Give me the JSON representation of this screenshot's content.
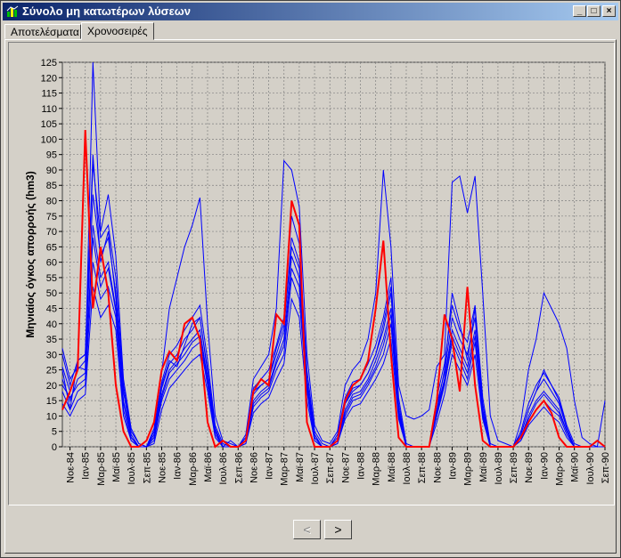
{
  "window": {
    "title": "Σύνολο μη κατωτέρων λύσεων",
    "minimize_label": "_",
    "maximize_label": "□",
    "close_label": "×"
  },
  "tabs": [
    {
      "label": "Αποτελέσματα",
      "active": false
    },
    {
      "label": "Χρονοσειρές",
      "active": true
    }
  ],
  "nav": {
    "prev_label": "<",
    "next_label": ">"
  },
  "colors": {
    "ensemble": "#0000ff",
    "highlight": "#ff0000",
    "plot_bg": "#d4d0c8"
  },
  "chart_data": {
    "type": "line",
    "ylabel": "Μηνιαίος όγκος απορροής (hm3)",
    "xlabel": "",
    "ylim": [
      0,
      125
    ],
    "yticks": [
      0,
      5,
      10,
      15,
      20,
      25,
      30,
      35,
      40,
      45,
      50,
      55,
      60,
      65,
      70,
      75,
      80,
      85,
      90,
      95,
      100,
      105,
      110,
      115,
      120,
      125
    ],
    "grid": true,
    "categories": [
      "Οκτ-84",
      "Νοε-84",
      "Δεκ-84",
      "Ιαν-85",
      "Φεβ-85",
      "Μαρ-85",
      "Απρ-85",
      "Μαϊ-85",
      "Ιουν-85",
      "Ιουλ-85",
      "Αυγ-85",
      "Σεπ-85",
      "Οκτ-85",
      "Νοε-85",
      "Δεκ-85",
      "Ιαν-86",
      "Φεβ-86",
      "Μαρ-86",
      "Απρ-86",
      "Μαϊ-86",
      "Ιουν-86",
      "Ιουλ-86",
      "Αυγ-86",
      "Σεπ-86",
      "Οκτ-86",
      "Νοε-86",
      "Δεκ-86",
      "Ιαν-87",
      "Φεβ-87",
      "Μαρ-87",
      "Απρ-87",
      "Μαϊ-87",
      "Ιουν-87",
      "Ιουλ-87",
      "Αυγ-87",
      "Σεπ-87",
      "Οκτ-87",
      "Νοε-87",
      "Δεκ-87",
      "Ιαν-88",
      "Φεβ-88",
      "Μαρ-88",
      "Απρ-88",
      "Μαϊ-88",
      "Ιουν-88",
      "Ιουλ-88",
      "Αυγ-88",
      "Σεπ-88",
      "Οκτ-88",
      "Νοε-88",
      "Δεκ-88",
      "Ιαν-89",
      "Φεβ-89",
      "Μαρ-89",
      "Απρ-89",
      "Μαϊ-89",
      "Ιουν-89",
      "Ιουλ-89",
      "Αυγ-89",
      "Σεπ-89",
      "Οκτ-89",
      "Νοε-89",
      "Δεκ-89",
      "Ιαν-90",
      "Φεβ-90",
      "Μαρ-90",
      "Απρ-90",
      "Μαϊ-90",
      "Ιουν-90",
      "Ιουλ-90",
      "Αυγ-90",
      "Σεπ-90"
    ],
    "tick_labels": [
      "Νοε-84",
      "Ιαν-85",
      "Μαρ-85",
      "Μαϊ-85",
      "Ιουλ-85",
      "Σεπ-85",
      "Νοε-85",
      "Ιαν-86",
      "Μαρ-86",
      "Μαϊ-86",
      "Ιουλ-86",
      "Σεπ-86",
      "Νοε-86",
      "Ιαν-87",
      "Μαρ-87",
      "Μαϊ-87",
      "Ιουλ-87",
      "Σεπ-87",
      "Νοε-87",
      "Ιαν-88",
      "Μαρ-88",
      "Μαϊ-88",
      "Ιουλ-88",
      "Σεπ-88",
      "Νοε-88",
      "Ιαν-89",
      "Μαρ-89",
      "Μαϊ-89",
      "Ιουλ-89",
      "Σεπ-89",
      "Νοε-89",
      "Ιαν-90",
      "Μαρ-90",
      "Μαϊ-90",
      "Ιουλ-90",
      "Σεπ-90"
    ],
    "series": [
      {
        "values": [
          22,
          15,
          22,
          24,
          72,
          55,
          60,
          45,
          15,
          3,
          0,
          0,
          3,
          17,
          25,
          28,
          32,
          35,
          38,
          22,
          5,
          0,
          0,
          0,
          2,
          15,
          18,
          20,
          28,
          35,
          62,
          55,
          20,
          3,
          0,
          0,
          2,
          12,
          17,
          18,
          22,
          28,
          35,
          45,
          12,
          0,
          0,
          0,
          0,
          12,
          22,
          38,
          32,
          26,
          38,
          12,
          0,
          0,
          0,
          0,
          3,
          10,
          15,
          18,
          15,
          12,
          5,
          0,
          0,
          0,
          0,
          0
        ]
      },
      {
        "values": [
          18,
          12,
          18,
          20,
          60,
          48,
          52,
          42,
          12,
          2,
          0,
          0,
          2,
          15,
          22,
          25,
          28,
          32,
          34,
          20,
          4,
          0,
          0,
          0,
          1,
          13,
          16,
          18,
          25,
          30,
          55,
          48,
          18,
          2,
          0,
          0,
          1,
          10,
          15,
          16,
          20,
          25,
          30,
          40,
          10,
          0,
          0,
          0,
          0,
          10,
          20,
          34,
          28,
          22,
          34,
          10,
          0,
          0,
          0,
          0,
          2,
          8,
          12,
          15,
          12,
          10,
          4,
          0,
          0,
          0,
          0,
          0
        ]
      },
      {
        "values": [
          26,
          18,
          25,
          28,
          82,
          62,
          68,
          50,
          18,
          4,
          0,
          0,
          4,
          19,
          27,
          30,
          35,
          38,
          42,
          25,
          6,
          0,
          0,
          0,
          3,
          17,
          20,
          22,
          30,
          38,
          68,
          60,
          22,
          4,
          0,
          0,
          3,
          14,
          19,
          20,
          24,
          30,
          38,
          50,
          14,
          0,
          0,
          0,
          0,
          14,
          24,
          42,
          35,
          30,
          42,
          14,
          0,
          0,
          0,
          0,
          4,
          12,
          18,
          22,
          18,
          14,
          6,
          0,
          0,
          0,
          0,
          0
        ]
      },
      {
        "values": [
          30,
          20,
          28,
          30,
          92,
          68,
          72,
          55,
          20,
          5,
          1,
          0,
          5,
          21,
          30,
          33,
          38,
          42,
          46,
          28,
          7,
          1,
          0,
          0,
          3,
          19,
          22,
          25,
          33,
          42,
          75,
          66,
          25,
          5,
          1,
          0,
          4,
          16,
          21,
          22,
          27,
          33,
          42,
          55,
          16,
          1,
          0,
          0,
          0,
          16,
          27,
          46,
          38,
          34,
          46,
          16,
          1,
          0,
          0,
          0,
          5,
          14,
          20,
          24,
          20,
          16,
          7,
          1,
          0,
          0,
          0,
          0
        ]
      },
      {
        "values": [
          14,
          10,
          15,
          17,
          52,
          42,
          46,
          38,
          10,
          2,
          0,
          0,
          1,
          12,
          19,
          22,
          25,
          28,
          30,
          18,
          3,
          0,
          0,
          0,
          1,
          11,
          14,
          16,
          22,
          27,
          48,
          42,
          15,
          2,
          0,
          0,
          1,
          9,
          13,
          14,
          18,
          22,
          27,
          35,
          9,
          0,
          0,
          0,
          0,
          8,
          17,
          30,
          25,
          20,
          30,
          9,
          0,
          0,
          0,
          0,
          2,
          7,
          10,
          13,
          10,
          8,
          3,
          0,
          0,
          0,
          0,
          0
        ]
      },
      {
        "values": [
          32,
          22,
          26,
          25,
          125,
          70,
          82,
          62,
          22,
          6,
          1,
          0,
          6,
          24,
          45,
          55,
          65,
          72,
          81,
          40,
          10,
          2,
          1,
          0,
          4,
          22,
          26,
          30,
          45,
          93,
          90,
          78,
          30,
          7,
          2,
          1,
          5,
          20,
          25,
          28,
          35,
          50,
          90,
          65,
          20,
          10,
          9,
          10,
          12,
          26,
          30,
          86,
          88,
          76,
          88,
          50,
          10,
          2,
          1,
          0,
          8,
          25,
          35,
          50,
          45,
          40,
          32,
          15,
          3,
          1,
          0,
          15
        ]
      },
      {
        "values": [
          25,
          12,
          28,
          30,
          95,
          60,
          70,
          48,
          18,
          3,
          0,
          0,
          4,
          20,
          28,
          26,
          33,
          40,
          42,
          24,
          6,
          0,
          2,
          0,
          3,
          18,
          20,
          22,
          32,
          40,
          65,
          58,
          22,
          4,
          0,
          0,
          2,
          14,
          18,
          20,
          24,
          30,
          40,
          52,
          12,
          0,
          0,
          0,
          0,
          12,
          25,
          50,
          40,
          28,
          45,
          12,
          0,
          0,
          0,
          0,
          4,
          12,
          18,
          25,
          20,
          15,
          6,
          0,
          0,
          0,
          0,
          0
        ]
      },
      {
        "values": [
          20,
          16,
          20,
          22,
          68,
          52,
          58,
          44,
          14,
          3,
          0,
          0,
          3,
          16,
          24,
          27,
          30,
          34,
          36,
          21,
          5,
          0,
          0,
          0,
          2,
          14,
          17,
          19,
          27,
          33,
          58,
          52,
          19,
          3,
          0,
          0,
          2,
          11,
          16,
          17,
          21,
          26,
          33,
          43,
          11,
          0,
          0,
          0,
          0,
          11,
          21,
          36,
          30,
          24,
          36,
          11,
          0,
          0,
          0,
          0,
          3,
          9,
          14,
          17,
          14,
          11,
          5,
          0,
          0,
          0,
          0,
          0
        ]
      }
    ],
    "highlight": {
      "values": [
        12,
        18,
        25,
        103,
        45,
        65,
        50,
        20,
        5,
        0,
        0,
        2,
        8,
        25,
        31,
        28,
        40,
        42,
        35,
        8,
        0,
        2,
        0,
        0,
        2,
        18,
        22,
        20,
        43,
        40,
        80,
        72,
        8,
        0,
        0,
        0,
        2,
        15,
        20,
        22,
        28,
        45,
        67,
        30,
        3,
        0,
        0,
        0,
        0,
        15,
        43,
        35,
        18,
        52,
        20,
        2,
        0,
        0,
        0,
        0,
        3,
        8,
        12,
        15,
        11,
        3,
        0,
        0,
        0,
        0,
        2,
        0
      ]
    }
  }
}
